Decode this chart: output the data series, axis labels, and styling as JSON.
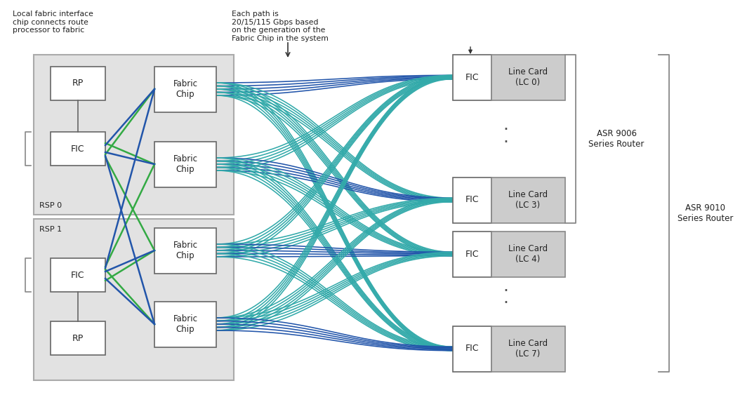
{
  "bg_color": "#ffffff",
  "rsp_box_color": "#e2e2e2",
  "rsp_box_border": "#aaaaaa",
  "white_box_color": "#ffffff",
  "white_box_border": "#666666",
  "lc_fic_color": "#ffffff",
  "lc_box_color": "#cccccc",
  "lc_box_border": "#888888",
  "blue_color": "#2255aa",
  "cyan_color": "#33aaaa",
  "green_color": "#33aa44",
  "text_color": "#222222",
  "annotation_text": "Each path is\n20/15/115 Gbps based\non the generation of the\nFabric Chip in the system",
  "left_annotation": "Local fabric interface\nchip connects route\nprocessor to fabric",
  "title_9006": "ASR 9006\nSeries Router",
  "title_9010": "ASR 9010\nSeries Router"
}
